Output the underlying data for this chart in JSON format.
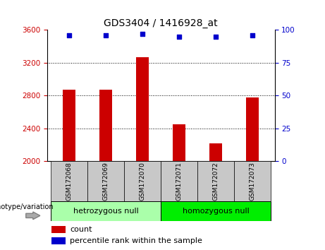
{
  "title": "GDS3404 / 1416928_at",
  "samples": [
    "GSM172068",
    "GSM172069",
    "GSM172070",
    "GSM172071",
    "GSM172072",
    "GSM172073"
  ],
  "counts": [
    2870,
    2870,
    3270,
    2450,
    2220,
    2780
  ],
  "percentile_ranks": [
    96,
    96,
    97,
    95,
    95,
    96
  ],
  "ylim_left": [
    2000,
    3600
  ],
  "ylim_right": [
    0,
    100
  ],
  "yticks_left": [
    2000,
    2400,
    2800,
    3200,
    3600
  ],
  "yticks_right": [
    0,
    25,
    50,
    75,
    100
  ],
  "bar_color": "#cc0000",
  "dot_color": "#0000cc",
  "bar_width": 0.35,
  "groups": [
    {
      "label": "hetrozygous null",
      "samples_idx": [
        0,
        1,
        2
      ],
      "color": "#aaffaa"
    },
    {
      "label": "homozygous null",
      "samples_idx": [
        3,
        4,
        5
      ],
      "color": "#00ee00"
    }
  ],
  "group_label": "genotype/variation",
  "legend_count_label": "count",
  "legend_percentile_label": "percentile rank within the sample",
  "tick_label_color_left": "#cc0000",
  "tick_label_color_right": "#0000cc",
  "bg_color": "#ffffff",
  "xlabel_area_bg": "#c8c8c8"
}
